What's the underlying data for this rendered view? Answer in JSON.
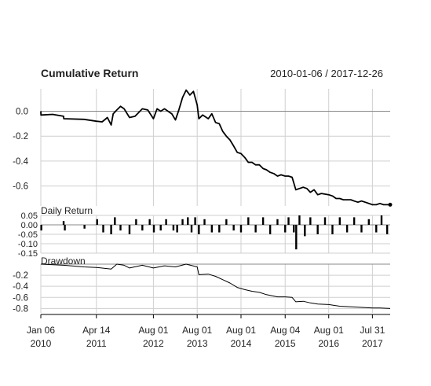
{
  "chart_data": [
    {
      "panel": "cumulative-return",
      "type": "line",
      "title": "Cumulative Return",
      "date_range_label": "2010-01-06 / 2017-12-26",
      "ylim": [
        -0.76,
        0.18
      ],
      "y_ticks": [
        "0.0",
        "-0.2",
        "-0.4",
        "-0.6"
      ],
      "y_tick_values": [
        0.0,
        -0.2,
        -0.4,
        -0.6
      ],
      "grid": true,
      "series": [
        {
          "color": "#000000",
          "points": [
            [
              "2010-01-06",
              0.0
            ],
            [
              "2010-01-07",
              -0.03
            ],
            [
              "2010-04-15",
              -0.025
            ],
            [
              "2010-07-15",
              -0.04
            ],
            [
              "2010-07-16",
              -0.06
            ],
            [
              "2011-01-01",
              -0.065
            ],
            [
              "2011-04-14",
              -0.08
            ],
            [
              "2011-06-01",
              -0.085
            ],
            [
              "2011-07-15",
              -0.05
            ],
            [
              "2011-08-15",
              -0.11
            ],
            [
              "2011-09-01",
              -0.02
            ],
            [
              "2011-10-01",
              0.01
            ],
            [
              "2011-11-01",
              0.04
            ],
            [
              "2011-12-01",
              0.02
            ],
            [
              "2012-01-15",
              -0.05
            ],
            [
              "2012-03-01",
              -0.04
            ],
            [
              "2012-05-01",
              0.02
            ],
            [
              "2012-06-15",
              0.01
            ],
            [
              "2012-08-01",
              -0.06
            ],
            [
              "2012-09-01",
              0.02
            ],
            [
              "2012-10-01",
              0.0
            ],
            [
              "2012-11-01",
              0.02
            ],
            [
              "2012-12-01",
              0.0
            ],
            [
              "2013-01-01",
              -0.02
            ],
            [
              "2013-02-01",
              -0.07
            ],
            [
              "2013-03-01",
              0.01
            ],
            [
              "2013-04-01",
              0.11
            ],
            [
              "2013-05-01",
              0.17
            ],
            [
              "2013-06-01",
              0.13
            ],
            [
              "2013-07-01",
              0.16
            ],
            [
              "2013-08-01",
              0.05
            ],
            [
              "2013-08-15",
              -0.06
            ],
            [
              "2013-09-15",
              -0.03
            ],
            [
              "2013-11-01",
              -0.06
            ],
            [
              "2013-12-01",
              -0.02
            ],
            [
              "2014-01-01",
              -0.09
            ],
            [
              "2014-02-01",
              -0.1
            ],
            [
              "2014-03-01",
              -0.16
            ],
            [
              "2014-04-01",
              -0.2
            ],
            [
              "2014-05-01",
              -0.23
            ],
            [
              "2014-06-01",
              -0.28
            ],
            [
              "2014-07-01",
              -0.33
            ],
            [
              "2014-08-01",
              -0.34
            ],
            [
              "2014-09-01",
              -0.37
            ],
            [
              "2014-10-01",
              -0.41
            ],
            [
              "2014-11-01",
              -0.41
            ],
            [
              "2014-12-01",
              -0.43
            ],
            [
              "2015-01-01",
              -0.43
            ],
            [
              "2015-02-01",
              -0.46
            ],
            [
              "2015-03-01",
              -0.47
            ],
            [
              "2015-04-01",
              -0.49
            ],
            [
              "2015-05-01",
              -0.5
            ],
            [
              "2015-06-01",
              -0.52
            ],
            [
              "2015-07-01",
              -0.51
            ],
            [
              "2015-08-04",
              -0.52
            ],
            [
              "2015-09-01",
              -0.52
            ],
            [
              "2015-10-01",
              -0.53
            ],
            [
              "2015-11-01",
              -0.63
            ],
            [
              "2015-12-01",
              -0.62
            ],
            [
              "2016-01-01",
              -0.61
            ],
            [
              "2016-02-01",
              -0.62
            ],
            [
              "2016-03-01",
              -0.65
            ],
            [
              "2016-04-01",
              -0.63
            ],
            [
              "2016-05-01",
              -0.67
            ],
            [
              "2016-06-01",
              -0.66
            ],
            [
              "2016-08-01",
              -0.67
            ],
            [
              "2016-09-01",
              -0.68
            ],
            [
              "2016-10-01",
              -0.7
            ],
            [
              "2016-11-01",
              -0.7
            ],
            [
              "2016-12-01",
              -0.71
            ],
            [
              "2017-01-01",
              -0.71
            ],
            [
              "2017-02-01",
              -0.71
            ],
            [
              "2017-03-01",
              -0.72
            ],
            [
              "2017-04-01",
              -0.73
            ],
            [
              "2017-05-01",
              -0.72
            ],
            [
              "2017-06-01",
              -0.73
            ],
            [
              "2017-07-31",
              -0.75
            ],
            [
              "2017-09-01",
              -0.75
            ],
            [
              "2017-10-01",
              -0.74
            ],
            [
              "2017-11-01",
              -0.75
            ],
            [
              "2017-12-26",
              -0.75
            ]
          ]
        }
      ]
    },
    {
      "panel": "daily-return",
      "type": "bar",
      "title": "Daily Return",
      "ylim": [
        -0.15,
        0.05
      ],
      "y_ticks": [
        "0.05",
        "0.00",
        "-0.05",
        "-0.10",
        "-0.15"
      ],
      "y_tick_values": [
        0.05,
        0.0,
        -0.05,
        -0.1,
        -0.15
      ],
      "grid": true,
      "bars": [
        [
          "2010-01-10",
          -0.03
        ],
        [
          "2010-07-15",
          0.02
        ],
        [
          "2010-07-25",
          -0.03
        ],
        [
          "2011-01-05",
          -0.02
        ],
        [
          "2011-04-20",
          0.03
        ],
        [
          "2011-06-10",
          -0.04
        ],
        [
          "2011-08-15",
          -0.05
        ],
        [
          "2011-09-15",
          0.04
        ],
        [
          "2011-11-01",
          -0.03
        ],
        [
          "2012-01-15",
          -0.05
        ],
        [
          "2012-03-10",
          0.03
        ],
        [
          "2012-05-01",
          -0.03
        ],
        [
          "2012-07-01",
          0.03
        ],
        [
          "2012-08-05",
          -0.04
        ],
        [
          "2012-10-01",
          -0.03
        ],
        [
          "2012-11-15",
          0.03
        ],
        [
          "2013-01-15",
          -0.03
        ],
        [
          "2013-02-15",
          -0.04
        ],
        [
          "2013-04-01",
          0.03
        ],
        [
          "2013-05-15",
          0.04
        ],
        [
          "2013-06-15",
          -0.04
        ],
        [
          "2013-07-15",
          0.04
        ],
        [
          "2013-08-15",
          -0.05
        ],
        [
          "2013-10-01",
          0.03
        ],
        [
          "2013-12-01",
          -0.04
        ],
        [
          "2014-02-01",
          -0.04
        ],
        [
          "2014-04-01",
          0.03
        ],
        [
          "2014-06-01",
          -0.03
        ],
        [
          "2014-08-01",
          -0.04
        ],
        [
          "2014-10-01",
          0.04
        ],
        [
          "2014-12-01",
          -0.04
        ],
        [
          "2015-02-01",
          0.04
        ],
        [
          "2015-04-01",
          -0.05
        ],
        [
          "2015-06-01",
          0.03
        ],
        [
          "2015-08-04",
          -0.04
        ],
        [
          "2015-09-01",
          0.04
        ],
        [
          "2015-10-15",
          -0.04
        ],
        [
          "2015-11-04",
          -0.13
        ],
        [
          "2015-12-01",
          0.05
        ],
        [
          "2016-01-15",
          -0.06
        ],
        [
          "2016-03-01",
          0.04
        ],
        [
          "2016-05-01",
          -0.05
        ],
        [
          "2016-07-01",
          0.04
        ],
        [
          "2016-09-01",
          -0.05
        ],
        [
          "2016-11-01",
          0.04
        ],
        [
          "2017-01-01",
          -0.04
        ],
        [
          "2017-03-01",
          0.04
        ],
        [
          "2017-05-01",
          -0.04
        ],
        [
          "2017-07-01",
          0.03
        ],
        [
          "2017-09-01",
          -0.04
        ],
        [
          "2017-10-15",
          0.05
        ],
        [
          "2017-12-01",
          -0.05
        ]
      ]
    },
    {
      "panel": "drawdown",
      "type": "line",
      "title": "Drawdown",
      "ylim": [
        -0.88,
        0.0
      ],
      "y_ticks": [
        "-0.2",
        "-0.4",
        "-0.6",
        "-0.8"
      ],
      "y_tick_values": [
        -0.2,
        -0.4,
        -0.6,
        -0.8
      ],
      "grid": true,
      "series": [
        {
          "color": "#000000",
          "points": [
            [
              "2010-01-06",
              0.0
            ],
            [
              "2010-07-15",
              -0.02
            ],
            [
              "2011-01-01",
              -0.05
            ],
            [
              "2011-04-14",
              -0.06
            ],
            [
              "2011-08-15",
              -0.09
            ],
            [
              "2011-10-01",
              0.0
            ],
            [
              "2011-12-01",
              -0.02
            ],
            [
              "2012-01-15",
              -0.07
            ],
            [
              "2012-05-01",
              -0.02
            ],
            [
              "2012-08-01",
              -0.07
            ],
            [
              "2012-11-01",
              -0.03
            ],
            [
              "2013-02-01",
              -0.05
            ],
            [
              "2013-05-01",
              0.0
            ],
            [
              "2013-08-01",
              -0.05
            ],
            [
              "2013-08-15",
              -0.19
            ],
            [
              "2013-11-01",
              -0.18
            ],
            [
              "2014-01-01",
              -0.22
            ],
            [
              "2014-03-01",
              -0.28
            ],
            [
              "2014-05-01",
              -0.34
            ],
            [
              "2014-07-01",
              -0.42
            ],
            [
              "2014-09-01",
              -0.46
            ],
            [
              "2014-11-01",
              -0.49
            ],
            [
              "2015-01-01",
              -0.51
            ],
            [
              "2015-03-01",
              -0.55
            ],
            [
              "2015-06-01",
              -0.59
            ],
            [
              "2015-08-04",
              -0.59
            ],
            [
              "2015-10-01",
              -0.6
            ],
            [
              "2015-11-01",
              -0.68
            ],
            [
              "2016-01-01",
              -0.67
            ],
            [
              "2016-03-01",
              -0.7
            ],
            [
              "2016-05-01",
              -0.72
            ],
            [
              "2016-08-01",
              -0.73
            ],
            [
              "2016-11-01",
              -0.76
            ],
            [
              "2017-02-01",
              -0.77
            ],
            [
              "2017-05-01",
              -0.78
            ],
            [
              "2017-07-31",
              -0.79
            ],
            [
              "2017-10-01",
              -0.79
            ],
            [
              "2017-12-26",
              -0.8
            ]
          ]
        }
      ]
    }
  ],
  "x_axis": {
    "range": [
      "2010-01-06",
      "2017-12-26"
    ],
    "ticks": [
      {
        "date": "2010-01-06",
        "line1": "Jan 06",
        "line2": "2010"
      },
      {
        "date": "2011-04-14",
        "line1": "Apr 14",
        "line2": "2011"
      },
      {
        "date": "2012-08-01",
        "line1": "Aug 01",
        "line2": "2012"
      },
      {
        "date": "2013-08-01",
        "line1": "Aug 01",
        "line2": "2013"
      },
      {
        "date": "2014-08-01",
        "line1": "Aug 01",
        "line2": "2014"
      },
      {
        "date": "2015-08-04",
        "line1": "Aug 04",
        "line2": "2015"
      },
      {
        "date": "2016-08-01",
        "line1": "Aug 01",
        "line2": "2016"
      },
      {
        "date": "2017-07-31",
        "line1": "Jul 31",
        "line2": "2017"
      }
    ]
  }
}
